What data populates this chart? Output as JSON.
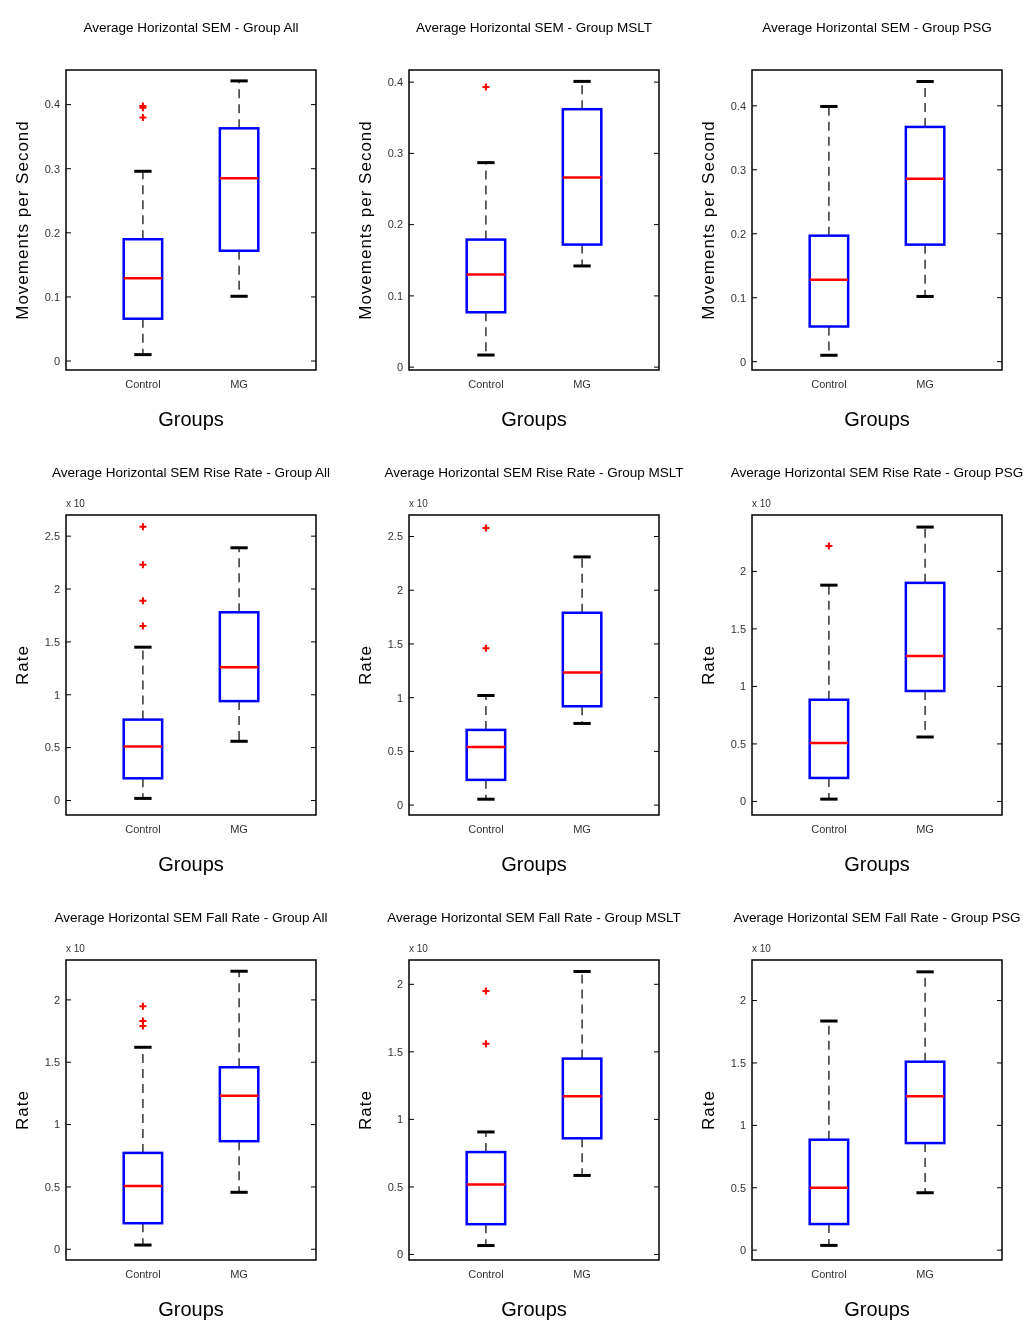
{
  "chart_data": [
    {
      "type": "box",
      "title": "Average Horizontal SEM - Group All",
      "xlabel": "Groups",
      "ylabel": "Movements per Second",
      "categories": [
        "Control",
        "MG"
      ],
      "ylim": [
        -0.014,
        0.454
      ],
      "yticks": [
        0,
        0.1,
        0.2,
        0.3,
        0.4
      ],
      "series": [
        {
          "color": "#0000ff",
          "boxes": [
            {
              "low": 0.01,
              "q1": 0.066,
              "median": 0.129,
              "q3": 0.19,
              "high": 0.296,
              "outliers": [
                0.38,
                0.395,
                0.398
              ]
            },
            {
              "low": 0.101,
              "q1": 0.172,
              "median": 0.285,
              "q3": 0.363,
              "high": 0.437
            }
          ]
        }
      ]
    },
    {
      "type": "box",
      "title": "Average Horizontal SEM - Group MSLT",
      "xlabel": "Groups",
      "ylabel": "Movements per Second",
      "categories": [
        "Control",
        "MG"
      ],
      "ylim": [
        -0.004,
        0.417
      ],
      "yticks": [
        0,
        0.1,
        0.2,
        0.3,
        0.4
      ],
      "series": [
        {
          "color": "#0000ff",
          "boxes": [
            {
              "low": 0.017,
              "q1": 0.077,
              "median": 0.13,
              "q3": 0.179,
              "high": 0.287,
              "outliers": [
                0.393
              ]
            },
            {
              "low": 0.142,
              "q1": 0.172,
              "median": 0.266,
              "q3": 0.362,
              "high": 0.401
            }
          ]
        }
      ]
    },
    {
      "type": "box",
      "title": "Average Horizontal SEM - Group PSG",
      "xlabel": "Groups",
      "ylabel": "Movements per Second",
      "categories": [
        "Control",
        "MG"
      ],
      "ylim": [
        -0.013,
        0.456
      ],
      "yticks": [
        0,
        0.1,
        0.2,
        0.3,
        0.4
      ],
      "series": [
        {
          "color": "#0000ff",
          "boxes": [
            {
              "low": 0.01,
              "q1": 0.055,
              "median": 0.128,
              "q3": 0.197,
              "high": 0.399
            },
            {
              "low": 0.102,
              "q1": 0.183,
              "median": 0.286,
              "q3": 0.367,
              "high": 0.438
            }
          ]
        }
      ]
    },
    {
      "type": "box",
      "title": "Average Horizontal SEM Rise Rate - Group All",
      "xlabel": "Groups",
      "ylabel": "Rate",
      "annotations": [
        "x 10"
      ],
      "categories": [
        "Control",
        "MG"
      ],
      "ylim": [
        -0.137,
        2.7
      ],
      "yticks": [
        0,
        0.5,
        1,
        1.5,
        2,
        2.5
      ],
      "series": [
        {
          "color": "#0000ff",
          "boxes": [
            {
              "low": 0.02,
              "q1": 0.21,
              "median": 0.51,
              "q3": 0.765,
              "high": 1.45,
              "outliers": [
                1.65,
                1.89,
                2.23,
                2.59
              ]
            },
            {
              "low": 0.56,
              "q1": 0.94,
              "median": 1.26,
              "q3": 1.78,
              "high": 2.39
            }
          ]
        }
      ]
    },
    {
      "type": "box",
      "title": "Average Horizontal SEM Rise Rate - Group MSLT",
      "xlabel": "Groups",
      "ylabel": "Rate",
      "annotations": [
        "x 10"
      ],
      "categories": [
        "Control",
        "MG"
      ],
      "ylim": [
        -0.092,
        2.7
      ],
      "yticks": [
        0,
        0.5,
        1,
        1.5,
        2,
        2.5
      ],
      "series": [
        {
          "color": "#0000ff",
          "boxes": [
            {
              "low": 0.055,
              "q1": 0.235,
              "median": 0.54,
              "q3": 0.7,
              "high": 1.02,
              "outliers": [
                1.46,
                2.58
              ]
            },
            {
              "low": 0.76,
              "q1": 0.92,
              "median": 1.235,
              "q3": 1.79,
              "high": 2.31
            }
          ]
        }
      ]
    },
    {
      "type": "box",
      "title": "Average Horizontal SEM Rise Rate - Group PSG",
      "xlabel": "Groups",
      "ylabel": "Rate",
      "annotations": [
        "x 10"
      ],
      "categories": [
        "Control",
        "MG"
      ],
      "ylim": [
        -0.118,
        2.49
      ],
      "yticks": [
        0,
        0.5,
        1,
        1.5,
        2
      ],
      "series": [
        {
          "color": "#0000ff",
          "boxes": [
            {
              "low": 0.02,
              "q1": 0.204,
              "median": 0.507,
              "q3": 0.884,
              "high": 1.88,
              "outliers": [
                2.22
              ]
            },
            {
              "low": 0.56,
              "q1": 0.96,
              "median": 1.265,
              "q3": 1.9,
              "high": 2.385
            }
          ]
        }
      ]
    },
    {
      "type": "box",
      "title": "Average Horizontal SEM Fall Rate - Group All",
      "xlabel": "Groups",
      "ylabel": "Rate",
      "annotations": [
        "x 10"
      ],
      "categories": [
        "Control",
        "MG"
      ],
      "ylim": [
        -0.086,
        2.32
      ],
      "yticks": [
        0,
        0.5,
        1,
        1.5,
        2
      ],
      "series": [
        {
          "color": "#0000ff",
          "boxes": [
            {
              "low": 0.034,
              "q1": 0.209,
              "median": 0.507,
              "q3": 0.773,
              "high": 1.62,
              "outliers": [
                1.79,
                1.83,
                1.95
              ]
            },
            {
              "low": 0.457,
              "q1": 0.867,
              "median": 1.232,
              "q3": 1.46,
              "high": 2.23
            }
          ]
        }
      ]
    },
    {
      "type": "box",
      "title": "Average Horizontal SEM Fall Rate - Group MSLT",
      "xlabel": "Groups",
      "ylabel": "Rate",
      "annotations": [
        "x 10"
      ],
      "categories": [
        "Control",
        "MG"
      ],
      "ylim": [
        -0.041,
        2.18
      ],
      "yticks": [
        0,
        0.5,
        1,
        1.5,
        2
      ],
      "series": [
        {
          "color": "#0000ff",
          "boxes": [
            {
              "low": 0.066,
              "q1": 0.224,
              "median": 0.518,
              "q3": 0.758,
              "high": 0.907,
              "outliers": [
                1.56,
                1.95
              ]
            },
            {
              "low": 0.585,
              "q1": 0.86,
              "median": 1.172,
              "q3": 1.45,
              "high": 2.095
            }
          ]
        }
      ]
    },
    {
      "type": "box",
      "title": "Average Horizontal SEM Fall Rate - Group PSG",
      "xlabel": "Groups",
      "ylabel": "Rate",
      "annotations": [
        "x 10"
      ],
      "categories": [
        "Control",
        "MG"
      ],
      "ylim": [
        -0.079,
        2.325
      ],
      "yticks": [
        0,
        0.5,
        1,
        1.5,
        2
      ],
      "series": [
        {
          "color": "#0000ff",
          "boxes": [
            {
              "low": 0.038,
              "q1": 0.209,
              "median": 0.499,
              "q3": 0.885,
              "high": 1.836
            },
            {
              "low": 0.46,
              "q1": 0.858,
              "median": 1.234,
              "q3": 1.51,
              "high": 2.23
            }
          ]
        }
      ]
    }
  ]
}
